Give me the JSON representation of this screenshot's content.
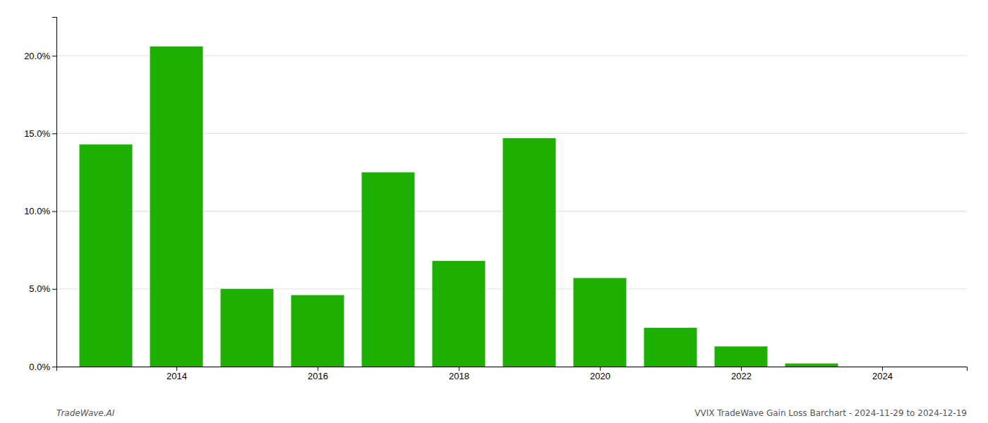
{
  "chart_data": {
    "type": "bar",
    "x": [
      2013,
      2014,
      2015,
      2016,
      2017,
      2018,
      2019,
      2020,
      2021,
      2022,
      2023
    ],
    "values": [
      0.143,
      0.206,
      0.05,
      0.046,
      0.125,
      0.068,
      0.147,
      0.057,
      0.025,
      0.013,
      0.002
    ],
    "color": "#1db000",
    "xlim": [
      2012.3,
      2025.2
    ],
    "xticks": [
      2014,
      2016,
      2018,
      2020,
      2022,
      2024
    ],
    "ylim": [
      0,
      0.225
    ],
    "yticks": [
      {
        "value": 0.0,
        "label": "0.0%"
      },
      {
        "value": 0.05,
        "label": "5.0%"
      },
      {
        "value": 0.1,
        "label": "10.0%"
      },
      {
        "value": 0.15,
        "label": "15.0%"
      },
      {
        "value": 0.2,
        "label": "20.0%"
      }
    ],
    "grid": true,
    "annotations": [
      "TradeWave.AI",
      "VVIX TradeWave Gain Loss Barchart - 2024-11-29 to 2024-12-19"
    ]
  }
}
